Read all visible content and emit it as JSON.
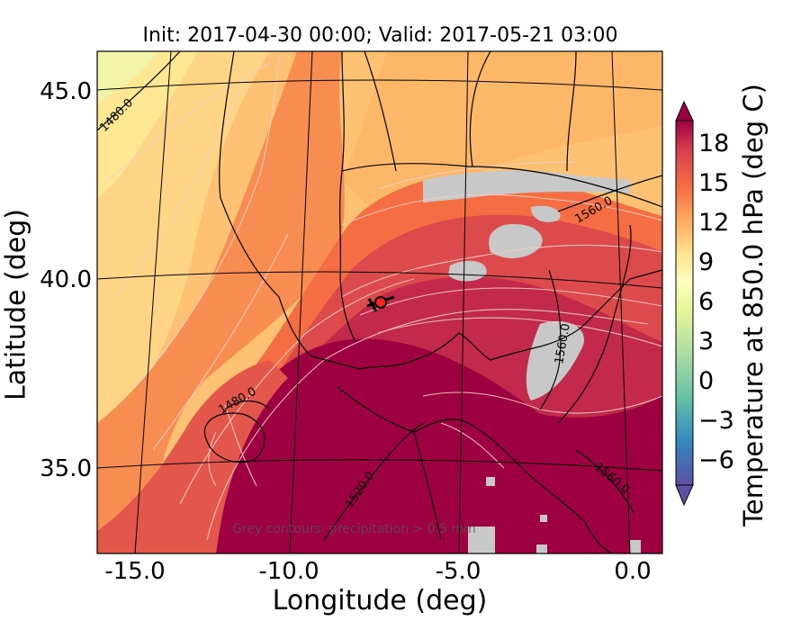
{
  "figure": {
    "title": "Init: 2017-04-30 00:00; Valid: 2017-05-21 03:00",
    "xlabel": "Longitude (deg)",
    "ylabel": "Latitude (deg)",
    "annotation": "Grey contours: precipitation > 0.5 mm"
  },
  "map": {
    "x_ticks": [
      "-15.0",
      "-10.0",
      "-5.0",
      "0.0"
    ],
    "y_ticks": [
      "35.0",
      "40.0",
      "45.0"
    ],
    "contour_labels": [
      "1480.0",
      "1480.0",
      "1520.0",
      "1560.0",
      "1560.0",
      "1560.0"
    ],
    "marker": "red-circle"
  },
  "colorbar": {
    "label": "Temperature at 850.0 hPa (deg C)",
    "tick_labels": [
      "18",
      "15",
      "12",
      "9",
      "6",
      "3",
      "0",
      "−3",
      "−6"
    ],
    "range": [
      -8,
      21
    ],
    "extend": "both"
  },
  "colors": {
    "warmest": "#9e0142",
    "hot": "#d53e4f",
    "warm": "#f46d43",
    "mild": "#fdae61",
    "cool": "#fee08b",
    "neutral": "#ffffbf",
    "cold": "#3288bd",
    "coldest": "#5e4fa2",
    "precip": "#c8c8c8"
  }
}
